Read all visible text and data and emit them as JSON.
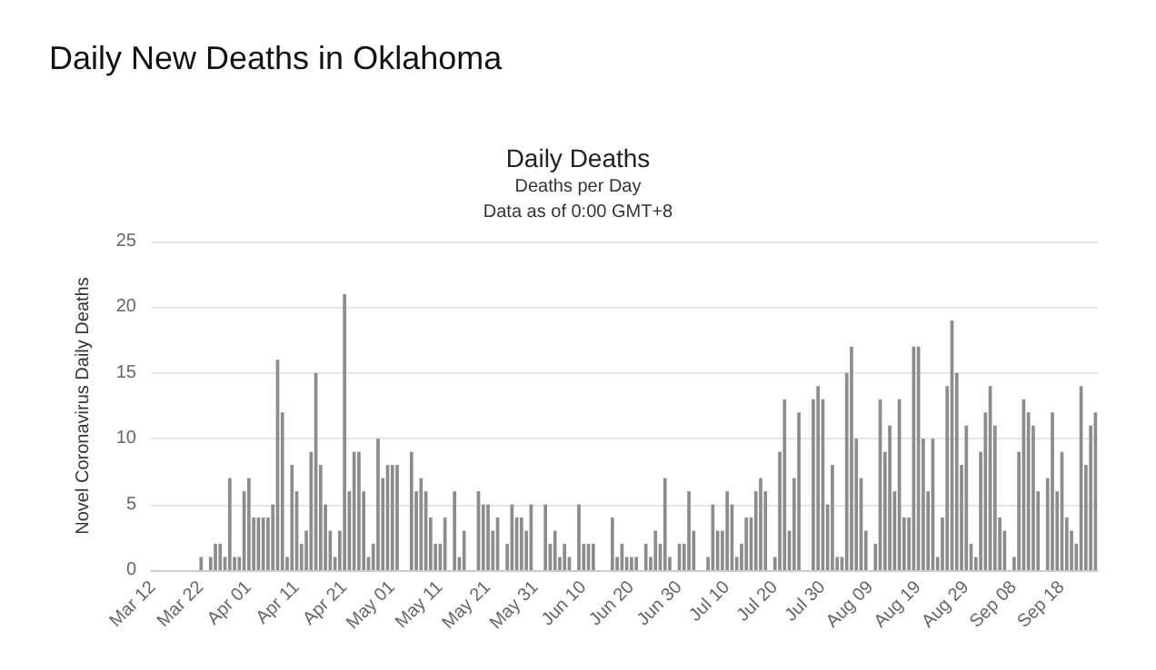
{
  "chart_data": {
    "type": "bar",
    "title": "Daily New Deaths in Oklahoma",
    "subtitle": "Daily Deaths",
    "annotations": [
      "Deaths per Day",
      "Data as of 0:00 GMT+8"
    ],
    "ylabel": "Novel Coronavirus Daily Deaths",
    "categories": [
      "Mar 12",
      null,
      null,
      null,
      null,
      null,
      null,
      null,
      null,
      null,
      "Mar 22",
      null,
      null,
      null,
      null,
      null,
      null,
      null,
      null,
      null,
      "Apr 01",
      null,
      null,
      null,
      null,
      null,
      null,
      null,
      null,
      null,
      "Apr 11",
      null,
      null,
      null,
      null,
      null,
      null,
      null,
      null,
      null,
      "Apr 21",
      null,
      null,
      null,
      null,
      null,
      null,
      null,
      null,
      null,
      "May 01",
      null,
      null,
      null,
      null,
      null,
      null,
      null,
      null,
      null,
      "May 11",
      null,
      null,
      null,
      null,
      null,
      null,
      null,
      null,
      null,
      "May 21",
      null,
      null,
      null,
      null,
      null,
      null,
      null,
      null,
      null,
      "May 31",
      null,
      null,
      null,
      null,
      null,
      null,
      null,
      null,
      null,
      "Jun 10",
      null,
      null,
      null,
      null,
      null,
      null,
      null,
      null,
      null,
      "Jun 20",
      null,
      null,
      null,
      null,
      null,
      null,
      null,
      null,
      null,
      "Jun 30",
      null,
      null,
      null,
      null,
      null,
      null,
      null,
      null,
      null,
      "Jul 10",
      null,
      null,
      null,
      null,
      null,
      null,
      null,
      null,
      null,
      "Jul 20",
      null,
      null,
      null,
      null,
      null,
      null,
      null,
      null,
      null,
      "Jul 30",
      null,
      null,
      null,
      null,
      null,
      null,
      null,
      null,
      null,
      "Aug 09",
      null,
      null,
      null,
      null,
      null,
      null,
      null,
      null,
      null,
      "Aug 19",
      null,
      null,
      null,
      null,
      null,
      null,
      null,
      null,
      null,
      "Aug 29",
      null,
      null,
      null,
      null,
      null,
      null,
      null,
      null,
      null,
      "Sep 08",
      null,
      null,
      null,
      null,
      null,
      null,
      null,
      null,
      null,
      "Sep 18",
      null,
      null,
      null,
      null,
      null,
      null,
      null
    ],
    "values": [
      0,
      0,
      0,
      0,
      0,
      0,
      0,
      0,
      0,
      0,
      1,
      0,
      1,
      2,
      2,
      1,
      7,
      1,
      1,
      6,
      7,
      4,
      4,
      4,
      4,
      5,
      16,
      12,
      1,
      8,
      6,
      2,
      3,
      9,
      15,
      8,
      5,
      3,
      1,
      3,
      21,
      6,
      9,
      9,
      6,
      1,
      2,
      10,
      7,
      8,
      8,
      8,
      0,
      0,
      9,
      6,
      7,
      6,
      4,
      2,
      2,
      4,
      0,
      6,
      1,
      3,
      0,
      0,
      6,
      5,
      5,
      3,
      4,
      0,
      2,
      5,
      4,
      4,
      3,
      5,
      0,
      0,
      5,
      2,
      3,
      1,
      2,
      1,
      0,
      5,
      2,
      2,
      2,
      0,
      0,
      0,
      4,
      1,
      2,
      1,
      1,
      1,
      0,
      2,
      1,
      3,
      2,
      7,
      1,
      0,
      2,
      2,
      6,
      3,
      0,
      0,
      1,
      5,
      3,
      3,
      6,
      5,
      1,
      2,
      4,
      4,
      6,
      7,
      6,
      0,
      1,
      9,
      13,
      3,
      7,
      12,
      0,
      0,
      13,
      14,
      13,
      5,
      8,
      1,
      1,
      15,
      17,
      10,
      7,
      3,
      0,
      2,
      13,
      9,
      11,
      6,
      13,
      4,
      4,
      17,
      17,
      10,
      6,
      10,
      1,
      4,
      14,
      19,
      15,
      8,
      11,
      2,
      1,
      9,
      12,
      14,
      11,
      4,
      3,
      0,
      1,
      9,
      13,
      12,
      11,
      6,
      0,
      7,
      12,
      6,
      9,
      4,
      3,
      2,
      14,
      8,
      11,
      12
    ],
    "color": "#8c8c8c",
    "ylim": [
      0,
      25
    ],
    "yticks": [
      0,
      5,
      10,
      15,
      20,
      25
    ],
    "grid": "y"
  }
}
